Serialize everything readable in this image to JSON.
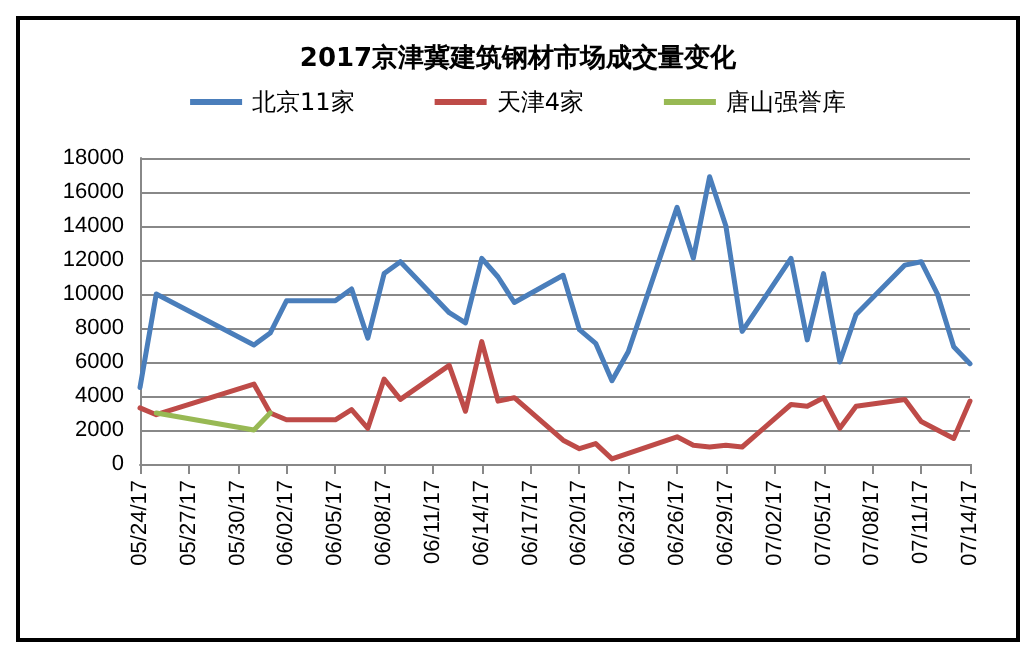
{
  "chart_data": {
    "type": "line",
    "title": "2017京津冀建筑钢材市场成交量变化",
    "legend": "top",
    "grid": "y",
    "marker": "none",
    "line_style": "solid",
    "xlim": [
      "2017-05-24",
      "2017-07-14"
    ],
    "xticks": [
      {
        "value": "2017-05-24",
        "label": "05/24/17"
      },
      {
        "value": "2017-05-27",
        "label": "05/27/17"
      },
      {
        "value": "2017-05-30",
        "label": "05/30/17"
      },
      {
        "value": "2017-06-02",
        "label": "06/02/17"
      },
      {
        "value": "2017-06-05",
        "label": "06/05/17"
      },
      {
        "value": "2017-06-08",
        "label": "06/08/17"
      },
      {
        "value": "2017-06-11",
        "label": "06/11/17"
      },
      {
        "value": "2017-06-14",
        "label": "06/14/17"
      },
      {
        "value": "2017-06-17",
        "label": "06/17/17"
      },
      {
        "value": "2017-06-20",
        "label": "06/20/17"
      },
      {
        "value": "2017-06-23",
        "label": "06/23/17"
      },
      {
        "value": "2017-06-26",
        "label": "06/26/17"
      },
      {
        "value": "2017-06-29",
        "label": "06/29/17"
      },
      {
        "value": "2017-07-02",
        "label": "07/02/17"
      },
      {
        "value": "2017-07-05",
        "label": "07/05/17"
      },
      {
        "value": "2017-07-08",
        "label": "07/08/17"
      },
      {
        "value": "2017-07-11",
        "label": "07/11/17"
      },
      {
        "value": "2017-07-14",
        "label": "07/14/17"
      }
    ],
    "ylim": [
      0,
      18000
    ],
    "yticks": [
      0,
      2000,
      4000,
      6000,
      8000,
      10000,
      12000,
      14000,
      16000,
      18000
    ],
    "series": [
      {
        "name": "北京11家",
        "color": "#4a7ebb",
        "x": [
          "2017-05-24",
          "2017-05-25",
          "2017-05-31",
          "2017-06-01",
          "2017-06-02",
          "2017-06-05",
          "2017-06-06",
          "2017-06-07",
          "2017-06-08",
          "2017-06-09",
          "2017-06-12",
          "2017-06-13",
          "2017-06-14",
          "2017-06-15",
          "2017-06-16",
          "2017-06-19",
          "2017-06-20",
          "2017-06-21",
          "2017-06-22",
          "2017-06-23",
          "2017-06-26",
          "2017-06-27",
          "2017-06-28",
          "2017-06-29",
          "2017-06-30",
          "2017-07-03",
          "2017-07-04",
          "2017-07-05",
          "2017-07-06",
          "2017-07-07",
          "2017-07-10",
          "2017-07-11",
          "2017-07-12",
          "2017-07-13",
          "2017-07-14"
        ],
        "values": [
          4500,
          10000,
          7000,
          7700,
          9600,
          9600,
          10300,
          7400,
          11200,
          11900,
          8900,
          8300,
          12100,
          11000,
          9500,
          11100,
          7900,
          7100,
          4900,
          6600,
          15100,
          12100,
          16900,
          14000,
          7800,
          12100,
          7300,
          11200,
          6000,
          8800,
          11700,
          11900,
          10000,
          6900,
          5900
        ]
      },
      {
        "name": "天津4家",
        "color": "#be4b48",
        "x": [
          "2017-05-24",
          "2017-05-25",
          "2017-05-31",
          "2017-06-01",
          "2017-06-02",
          "2017-06-05",
          "2017-06-06",
          "2017-06-07",
          "2017-06-08",
          "2017-06-09",
          "2017-06-12",
          "2017-06-13",
          "2017-06-14",
          "2017-06-15",
          "2017-06-16",
          "2017-06-19",
          "2017-06-20",
          "2017-06-21",
          "2017-06-22",
          "2017-06-26",
          "2017-06-27",
          "2017-06-28",
          "2017-06-29",
          "2017-06-30",
          "2017-07-03",
          "2017-07-04",
          "2017-07-05",
          "2017-07-06",
          "2017-07-07",
          "2017-07-10",
          "2017-07-11",
          "2017-07-12",
          "2017-07-13",
          "2017-07-14"
        ],
        "values": [
          3300,
          2900,
          4700,
          3000,
          2600,
          2600,
          3200,
          2100,
          5000,
          3800,
          5800,
          3100,
          7200,
          3700,
          3900,
          1400,
          900,
          1200,
          300,
          1600,
          1100,
          1000,
          1100,
          1000,
          3500,
          3400,
          3900,
          2100,
          3400,
          3800,
          2500,
          2000,
          1500,
          3700
        ]
      },
      {
        "name": "唐山强誉库",
        "color": "#98b954",
        "x": [
          "2017-05-25",
          "2017-05-31",
          "2017-06-01"
        ],
        "values": [
          3000,
          2000,
          3000
        ]
      }
    ]
  }
}
